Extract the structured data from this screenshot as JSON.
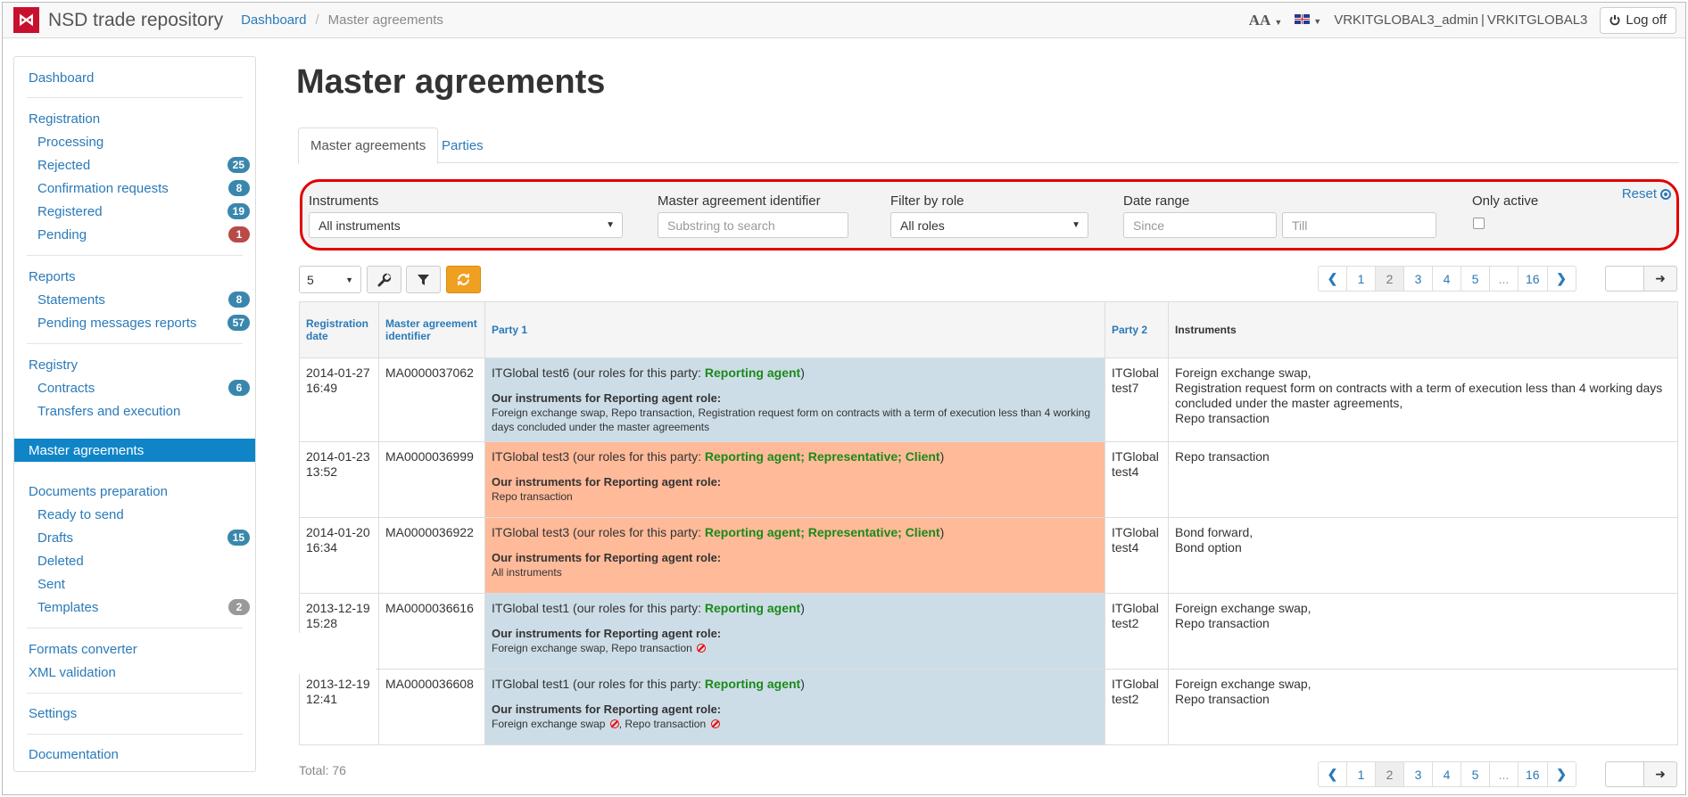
{
  "app": {
    "brand": "NSD trade repository",
    "logo_letter": "⋈"
  },
  "breadcrumb": [
    "Dashboard",
    "Master agreements"
  ],
  "header": {
    "font_size_label": "AA",
    "user": "VRKITGLOBAL3_admin",
    "org": "VRKITGLOBAL3",
    "logoff_label": "Log off"
  },
  "sidebar": {
    "dashboard": "Dashboard",
    "registration": "Registration",
    "processing": "Processing",
    "rejected": "Rejected",
    "rejected_count": "25",
    "confirmation": "Confirmation requests",
    "confirmation_count": "8",
    "registered": "Registered",
    "registered_count": "19",
    "pending": "Pending",
    "pending_count": "1",
    "reports": "Reports",
    "statements": "Statements",
    "statements_count": "8",
    "pending_msgs": "Pending messages reports",
    "pending_msgs_count": "57",
    "registry": "Registry",
    "contracts": "Contracts",
    "contracts_count": "6",
    "transfers": "Transfers and execution",
    "master_agreements": "Master agreements",
    "docs_prep": "Documents preparation",
    "ready": "Ready to send",
    "drafts": "Drafts",
    "drafts_count": "15",
    "deleted": "Deleted",
    "sent": "Sent",
    "templates": "Templates",
    "templates_count": "2",
    "formats": "Formats converter",
    "xml": "XML validation",
    "settings": "Settings",
    "documentation": "Documentation"
  },
  "page": {
    "title": "Master agreements"
  },
  "tabs": [
    "Master agreements",
    "Parties"
  ],
  "filter": {
    "instruments_label": "Instruments",
    "instruments_value": "All instruments",
    "identifier_label": "Master agreement identifier",
    "identifier_placeholder": "Substring to search",
    "role_label": "Filter by role",
    "role_value": "All roles",
    "date_label": "Date range",
    "since_placeholder": "Since",
    "till_placeholder": "Till",
    "active_label": "Only active",
    "reset_label": "Reset"
  },
  "toolbar": {
    "page_size": "5"
  },
  "pager": [
    "1",
    "2",
    "3",
    "4",
    "5",
    "...",
    "16"
  ],
  "table": {
    "headers": [
      "Registration date",
      "Master agreement identifier",
      "Party 1",
      "Party 2",
      "Instruments"
    ],
    "prefix": " (our roles for this party: ",
    "suffix": ")",
    "instr_heading": "Our instruments for Reporting agent role:",
    "rows": [
      {
        "date": "2014-01-27 16:49",
        "id": "MA0000037062",
        "party1": "ITGlobal test6",
        "roles": "Reporting agent",
        "instr": "Foreign exchange swap, Repo transaction, Registration request form on contracts with a term of execution less than 4 working days concluded under the master agreements",
        "party2": "ITGlobal test7",
        "instruments": [
          "Foreign exchange swap,",
          "Registration request form on contracts with a term of execution less than 4 working days concluded under the master agreements,",
          "Repo transaction"
        ]
      },
      {
        "date": "2014-01-23 13:52",
        "id": "MA0000036999",
        "party1": "ITGlobal test3",
        "roles": "Reporting agent; Representative; Client",
        "instr": "Repo transaction",
        "party2": "ITGlobal test4",
        "instruments": [
          "Repo transaction"
        ]
      },
      {
        "date": "2014-01-20 16:34",
        "id": "MA0000036922",
        "party1": "ITGlobal test3",
        "roles": "Reporting agent; Representative; Client",
        "instr": "All instruments",
        "party2": "ITGlobal test4",
        "instruments": [
          "Bond forward,",
          "Bond option"
        ]
      },
      {
        "date": "2013-12-19 15:28",
        "id": "MA0000036616",
        "party1": "ITGlobal test1",
        "roles": "Reporting agent",
        "instr_a": "Foreign exchange swap, Repo transaction",
        "party2": "ITGlobal test2",
        "instruments": [
          "Foreign exchange swap,",
          "Repo transaction"
        ]
      },
      {
        "date": "2013-12-19 12:41",
        "id": "MA0000036608",
        "party1": "ITGlobal test1",
        "roles": "Reporting agent",
        "instr_a": "Foreign exchange swap",
        "instr_b": ", Repo transaction",
        "party2": "ITGlobal test2",
        "instruments": [
          "Foreign exchange swap,",
          "Repo transaction"
        ]
      }
    ]
  },
  "total": "Total: 76"
}
